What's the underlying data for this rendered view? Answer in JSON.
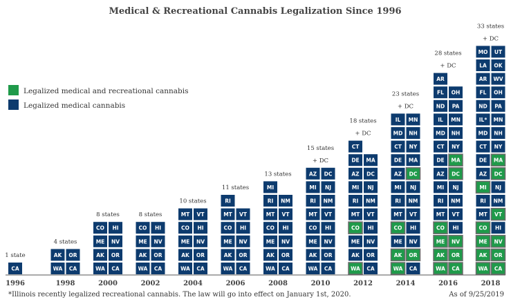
{
  "chart_data": {
    "type": "bar",
    "title": "Medical & Recreational Cannabis Legalization Since 1996",
    "x": [
      "1996",
      "1998",
      "2000",
      "2002",
      "2004",
      "2006",
      "2008",
      "2010",
      "2012",
      "2014",
      "2016",
      "2018"
    ],
    "colors": {
      "medical": "#0d3b6e",
      "recreational": "#1f9a4a"
    },
    "legend": [
      {
        "key": "recreational",
        "label": "Legalized medical and recreational cannabis"
      },
      {
        "key": "medical",
        "label": "Legalized medical cannabis"
      }
    ],
    "legend_position": "top-left",
    "columns": [
      {
        "year": "1996",
        "count": 1,
        "label": "1 state",
        "dc": null,
        "rows": [
          [
            "CA"
          ]
        ],
        "rec": []
      },
      {
        "year": "1998",
        "count": 4,
        "label": "4 states",
        "dc": null,
        "rows": [
          [
            "WA",
            "CA"
          ],
          [
            "AK",
            "OR"
          ]
        ],
        "rec": []
      },
      {
        "year": "2000",
        "count": 8,
        "label": "8 states",
        "dc": null,
        "rows": [
          [
            "WA",
            "CA"
          ],
          [
            "AK",
            "OR"
          ],
          [
            "ME",
            "NV"
          ],
          [
            "CO",
            "HI"
          ]
        ],
        "rec": []
      },
      {
        "year": "2002",
        "count": 8,
        "label": "8 states",
        "dc": null,
        "rows": [
          [
            "WA",
            "CA"
          ],
          [
            "AK",
            "OR"
          ],
          [
            "ME",
            "NV"
          ],
          [
            "CO",
            "HI"
          ]
        ],
        "rec": []
      },
      {
        "year": "2004",
        "count": 10,
        "label": "10 states",
        "dc": null,
        "rows": [
          [
            "WA",
            "CA"
          ],
          [
            "AK",
            "OR"
          ],
          [
            "ME",
            "NV"
          ],
          [
            "CO",
            "HI"
          ],
          [
            "MT",
            "VT"
          ]
        ],
        "rec": []
      },
      {
        "year": "2006",
        "count": 11,
        "label": "11 states",
        "dc": null,
        "rows": [
          [
            "WA",
            "CA"
          ],
          [
            "AK",
            "OR"
          ],
          [
            "ME",
            "NV"
          ],
          [
            "CO",
            "HI"
          ],
          [
            "MT",
            "VT"
          ],
          [
            "RI"
          ]
        ],
        "rec": []
      },
      {
        "year": "2008",
        "count": 13,
        "label": "13 states",
        "dc": null,
        "rows": [
          [
            "WA",
            "CA"
          ],
          [
            "AK",
            "OR"
          ],
          [
            "ME",
            "NV"
          ],
          [
            "CO",
            "HI"
          ],
          [
            "MT",
            "VT"
          ],
          [
            "RI",
            "NM"
          ],
          [
            "MI"
          ]
        ],
        "rec": []
      },
      {
        "year": "2010",
        "count": 15,
        "label": "15 states",
        "dc": "+ DC",
        "rows": [
          [
            "WA",
            "CA"
          ],
          [
            "AK",
            "OR"
          ],
          [
            "ME",
            "NV"
          ],
          [
            "CO",
            "HI"
          ],
          [
            "MT",
            "VT"
          ],
          [
            "RI",
            "NM"
          ],
          [
            "MI",
            "NJ"
          ],
          [
            "AZ",
            "DC"
          ]
        ],
        "rec": []
      },
      {
        "year": "2012",
        "count": 18,
        "label": "18 states",
        "dc": "+ DC",
        "rows": [
          [
            "WA",
            "CA"
          ],
          [
            "AK",
            "OR"
          ],
          [
            "ME",
            "NV"
          ],
          [
            "CO",
            "HI"
          ],
          [
            "MT",
            "VT"
          ],
          [
            "RI",
            "NM"
          ],
          [
            "MI",
            "NJ"
          ],
          [
            "AZ",
            "DC"
          ],
          [
            "DE",
            "MA"
          ],
          [
            "CT"
          ]
        ],
        "rec": [
          "WA",
          "CO"
        ]
      },
      {
        "year": "2014",
        "count": 23,
        "label": "23 states",
        "dc": "+ DC",
        "rows": [
          [
            "WA",
            "CA"
          ],
          [
            "AK",
            "OR"
          ],
          [
            "ME",
            "NV"
          ],
          [
            "CO",
            "HI"
          ],
          [
            "MT",
            "VT"
          ],
          [
            "RI",
            "NM"
          ],
          [
            "MI",
            "NJ"
          ],
          [
            "AZ",
            "DC"
          ],
          [
            "DE",
            "MA"
          ],
          [
            "CT",
            "NY"
          ],
          [
            "MD",
            "NH"
          ],
          [
            "IL",
            "MN"
          ]
        ],
        "rec": [
          "WA",
          "AK",
          "OR",
          "CO",
          "DC"
        ]
      },
      {
        "year": "2016",
        "count": 28,
        "label": "28 states",
        "dc": "+ DC",
        "rows": [
          [
            "WA",
            "CA"
          ],
          [
            "AK",
            "OR"
          ],
          [
            "ME",
            "NV"
          ],
          [
            "CO",
            "HI"
          ],
          [
            "MT",
            "VT"
          ],
          [
            "RI",
            "NM"
          ],
          [
            "MI",
            "NJ"
          ],
          [
            "AZ",
            "DC"
          ],
          [
            "DE",
            "MA"
          ],
          [
            "CT",
            "NY"
          ],
          [
            "MD",
            "NH"
          ],
          [
            "IL",
            "MN"
          ],
          [
            "ND",
            "PA"
          ],
          [
            "FL",
            "OH"
          ],
          [
            "AR"
          ]
        ],
        "rec": [
          "WA",
          "CA",
          "AK",
          "OR",
          "ME",
          "NV",
          "CO",
          "DC",
          "MA"
        ]
      },
      {
        "year": "2018",
        "count": 33,
        "label": "33 states",
        "dc": "+ DC",
        "rows": [
          [
            "WA",
            "CA"
          ],
          [
            "AK",
            "OR"
          ],
          [
            "ME",
            "NV"
          ],
          [
            "CO",
            "HI"
          ],
          [
            "MT",
            "VT"
          ],
          [
            "RI",
            "NM"
          ],
          [
            "MI",
            "NJ"
          ],
          [
            "AZ",
            "DC"
          ],
          [
            "DE",
            "MA"
          ],
          [
            "CT",
            "NY"
          ],
          [
            "MD",
            "NH"
          ],
          [
            "IL*",
            "MN"
          ],
          [
            "ND",
            "PA"
          ],
          [
            "FL",
            "OH"
          ],
          [
            "AR",
            "WV"
          ],
          [
            "LA",
            "OK"
          ],
          [
            "MO",
            "UT"
          ]
        ],
        "rec": [
          "WA",
          "CA",
          "AK",
          "OR",
          "ME",
          "NV",
          "CO",
          "VT",
          "MI",
          "DC",
          "MA"
        ]
      }
    ],
    "footnote": "*Illinois recently legalized recreational cannabis. The law will go into effect on January 1st, 2020.",
    "as_of": "As of 9/25/2019"
  }
}
